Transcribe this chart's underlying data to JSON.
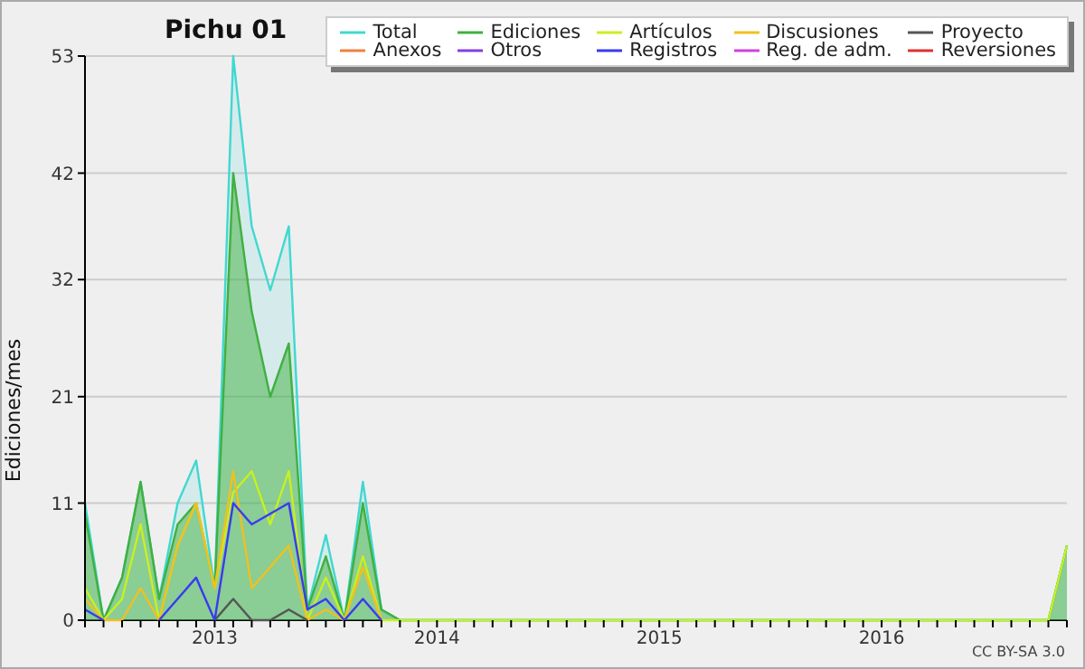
{
  "chart_data": {
    "type": "area",
    "title": "Pichu 01",
    "ylabel": "Ediciones/mes",
    "x": [
      "2012-06",
      "2012-07",
      "2012-08",
      "2012-09",
      "2012-10",
      "2012-11",
      "2012-12",
      "2013-01",
      "2013-02",
      "2013-03",
      "2013-04",
      "2013-05",
      "2013-06",
      "2013-07",
      "2013-08",
      "2013-09",
      "2013-10",
      "2013-11",
      "2013-12",
      "2014-01",
      "2014-02",
      "2014-03",
      "2014-04",
      "2014-05",
      "2014-06",
      "2014-07",
      "2014-08",
      "2014-09",
      "2014-10",
      "2014-11",
      "2014-12",
      "2015-01",
      "2015-02",
      "2015-03",
      "2015-04",
      "2015-05",
      "2015-06",
      "2015-07",
      "2015-08",
      "2015-09",
      "2015-10",
      "2015-11",
      "2015-12",
      "2016-01",
      "2016-02",
      "2016-03",
      "2016-04",
      "2016-05",
      "2016-06",
      "2016-07",
      "2016-08",
      "2016-09",
      "2016-10",
      "2016-11"
    ],
    "series": [
      {
        "name": "Total",
        "color": "#40d8d0",
        "values": [
          11,
          0,
          4,
          13,
          2,
          11,
          15,
          3,
          53,
          37,
          31,
          37,
          1,
          8,
          0,
          13,
          1,
          0,
          0,
          0,
          0,
          0,
          0,
          0,
          0,
          0,
          0,
          0,
          0,
          0,
          0,
          0,
          0,
          0,
          0,
          0,
          0,
          0,
          0,
          0,
          0,
          0,
          0,
          0,
          0,
          0,
          0,
          0,
          0,
          0,
          0,
          0,
          0,
          7
        ]
      },
      {
        "name": "Ediciones",
        "color": "#40b040",
        "values": [
          10,
          0,
          4,
          13,
          2,
          9,
          11,
          3,
          42,
          29,
          21,
          26,
          1,
          6,
          0,
          11,
          1,
          0,
          0,
          0,
          0,
          0,
          0,
          0,
          0,
          0,
          0,
          0,
          0,
          0,
          0,
          0,
          0,
          0,
          0,
          0,
          0,
          0,
          0,
          0,
          0,
          0,
          0,
          0,
          0,
          0,
          0,
          0,
          0,
          0,
          0,
          0,
          0,
          7
        ]
      },
      {
        "name": "Artículos",
        "type": "line",
        "color": "#c8f020",
        "values": [
          3,
          0,
          2,
          9,
          0,
          7,
          11,
          3,
          12,
          14,
          9,
          14,
          0,
          4,
          0,
          6,
          0,
          0,
          0,
          0,
          0,
          0,
          0,
          0,
          0,
          0,
          0,
          0,
          0,
          0,
          0,
          0,
          0,
          0,
          0,
          0,
          0,
          0,
          0,
          0,
          0,
          0,
          0,
          0,
          0,
          0,
          0,
          0,
          0,
          0,
          0,
          0,
          0,
          7
        ]
      },
      {
        "name": "Discusiones",
        "type": "line",
        "color": "#f0c020",
        "values": [
          2,
          0,
          0,
          3,
          0,
          7,
          11,
          3,
          14,
          3,
          5,
          7,
          0,
          1,
          0,
          5,
          0,
          null,
          null,
          null,
          null,
          null,
          null,
          null,
          null,
          null,
          null,
          null,
          null,
          null,
          null,
          null,
          null,
          null,
          null,
          null,
          null,
          null,
          null,
          null,
          null,
          null,
          null,
          null,
          null,
          null,
          null,
          null,
          null,
          null,
          null,
          null,
          null,
          null
        ]
      },
      {
        "name": "Proyecto",
        "type": "line",
        "color": "#555555",
        "values": [
          null,
          null,
          null,
          null,
          null,
          null,
          null,
          0,
          2,
          0,
          0,
          1,
          0,
          null,
          null,
          null,
          null,
          null,
          null,
          null,
          null,
          null,
          null,
          null,
          null,
          null,
          null,
          null,
          null,
          null,
          null,
          null,
          null,
          null,
          null,
          null,
          null,
          null,
          null,
          null,
          null,
          null,
          null,
          null,
          null,
          null,
          null,
          null,
          null,
          null,
          null,
          null,
          null,
          null
        ]
      },
      {
        "name": "Anexos",
        "type": "line",
        "color": "#f08040",
        "values": [
          null,
          null,
          null,
          null,
          null,
          null,
          null,
          null,
          null,
          null,
          null,
          null,
          null,
          null,
          null,
          null,
          null,
          null,
          null,
          null,
          null,
          null,
          null,
          null,
          null,
          null,
          null,
          null,
          null,
          null,
          null,
          null,
          null,
          null,
          null,
          null,
          null,
          null,
          null,
          null,
          null,
          null,
          null,
          null,
          null,
          null,
          null,
          null,
          null,
          null,
          null,
          null,
          null,
          null
        ]
      },
      {
        "name": "Otros",
        "type": "line",
        "color": "#8040e0",
        "values": [
          null,
          null,
          null,
          null,
          null,
          null,
          null,
          null,
          null,
          null,
          null,
          null,
          null,
          null,
          null,
          null,
          null,
          null,
          null,
          null,
          null,
          null,
          null,
          null,
          null,
          null,
          null,
          null,
          null,
          null,
          null,
          null,
          null,
          null,
          null,
          null,
          null,
          null,
          null,
          null,
          null,
          null,
          null,
          null,
          null,
          null,
          null,
          null,
          null,
          null,
          null,
          null,
          null,
          null
        ]
      },
      {
        "name": "Registros",
        "type": "line",
        "color": "#3a3af0",
        "values": [
          1,
          0,
          null,
          null,
          0,
          2,
          4,
          0,
          11,
          9,
          10,
          11,
          1,
          2,
          0,
          2,
          0,
          null,
          null,
          null,
          null,
          null,
          null,
          null,
          null,
          null,
          null,
          null,
          null,
          null,
          null,
          null,
          null,
          null,
          null,
          null,
          null,
          null,
          null,
          null,
          null,
          null,
          null,
          null,
          null,
          null,
          null,
          null,
          null,
          null,
          null,
          null,
          null,
          null
        ]
      },
      {
        "name": "Reg. de adm.",
        "type": "line",
        "color": "#d040e0",
        "values": [
          null,
          null,
          null,
          null,
          null,
          null,
          null,
          null,
          null,
          null,
          null,
          null,
          null,
          null,
          null,
          null,
          null,
          null,
          null,
          null,
          null,
          null,
          null,
          null,
          null,
          null,
          null,
          null,
          null,
          null,
          null,
          null,
          null,
          null,
          null,
          null,
          null,
          null,
          null,
          null,
          null,
          null,
          null,
          null,
          null,
          null,
          null,
          null,
          null,
          null,
          null,
          null,
          null,
          null
        ]
      },
      {
        "name": "Reversiones",
        "type": "line",
        "color": "#e03030",
        "values": [
          null,
          null,
          null,
          null,
          null,
          null,
          null,
          null,
          null,
          null,
          null,
          null,
          null,
          null,
          null,
          null,
          null,
          null,
          null,
          null,
          null,
          null,
          null,
          null,
          null,
          null,
          null,
          null,
          null,
          null,
          null,
          null,
          null,
          null,
          null,
          null,
          null,
          null,
          null,
          null,
          null,
          null,
          null,
          null,
          null,
          null,
          null,
          null,
          null,
          null,
          null,
          null,
          null,
          null
        ]
      }
    ],
    "xlim": [
      "2012-06",
      "2016-11"
    ],
    "xticks": [
      {
        "value": "2012-06",
        "label": null
      },
      {
        "value": "2012-07",
        "label": null
      },
      {
        "value": "2012-08",
        "label": null
      },
      {
        "value": "2012-09",
        "label": null
      },
      {
        "value": "2012-10",
        "label": null
      },
      {
        "value": "2012-11",
        "label": null
      },
      {
        "value": "2012-12",
        "label": null
      },
      {
        "value": "2013-01",
        "label": "2013"
      },
      {
        "value": "2013-02",
        "label": null
      },
      {
        "value": "2013-03",
        "label": null
      },
      {
        "value": "2013-04",
        "label": null
      },
      {
        "value": "2013-05",
        "label": null
      },
      {
        "value": "2013-06",
        "label": null
      },
      {
        "value": "2013-07",
        "label": null
      },
      {
        "value": "2013-08",
        "label": null
      },
      {
        "value": "2013-09",
        "label": null
      },
      {
        "value": "2013-10",
        "label": null
      },
      {
        "value": "2013-11",
        "label": null
      },
      {
        "value": "2013-12",
        "label": null
      },
      {
        "value": "2014-01",
        "label": "2014"
      },
      {
        "value": "2014-02",
        "label": null
      },
      {
        "value": "2014-03",
        "label": null
      },
      {
        "value": "2014-04",
        "label": null
      },
      {
        "value": "2014-05",
        "label": null
      },
      {
        "value": "2014-06",
        "label": null
      },
      {
        "value": "2014-07",
        "label": null
      },
      {
        "value": "2014-08",
        "label": null
      },
      {
        "value": "2014-09",
        "label": null
      },
      {
        "value": "2014-10",
        "label": null
      },
      {
        "value": "2014-11",
        "label": null
      },
      {
        "value": "2014-12",
        "label": null
      },
      {
        "value": "2015-01",
        "label": "2015"
      },
      {
        "value": "2015-02",
        "label": null
      },
      {
        "value": "2015-03",
        "label": null
      },
      {
        "value": "2015-04",
        "label": null
      },
      {
        "value": "2015-05",
        "label": null
      },
      {
        "value": "2015-06",
        "label": null
      },
      {
        "value": "2015-07",
        "label": null
      },
      {
        "value": "2015-08",
        "label": null
      },
      {
        "value": "2015-09",
        "label": null
      },
      {
        "value": "2015-10",
        "label": null
      },
      {
        "value": "2015-11",
        "label": null
      },
      {
        "value": "2015-12",
        "label": null
      },
      {
        "value": "2016-01",
        "label": "2016"
      },
      {
        "value": "2016-02",
        "label": null
      },
      {
        "value": "2016-03",
        "label": null
      },
      {
        "value": "2016-04",
        "label": null
      },
      {
        "value": "2016-05",
        "label": null
      },
      {
        "value": "2016-06",
        "label": null
      },
      {
        "value": "2016-07",
        "label": null
      },
      {
        "value": "2016-08",
        "label": null
      },
      {
        "value": "2016-09",
        "label": null
      },
      {
        "value": "2016-10",
        "label": null
      },
      {
        "value": "2016-11",
        "label": null
      }
    ],
    "ylim": [
      0,
      53
    ],
    "yticks": [
      0,
      11,
      21,
      32,
      42,
      53
    ],
    "grid": "y",
    "legend": "top right",
    "marker": "none",
    "line_style": "solid",
    "annotations": [
      "CC BY-SA 3.0"
    ]
  }
}
